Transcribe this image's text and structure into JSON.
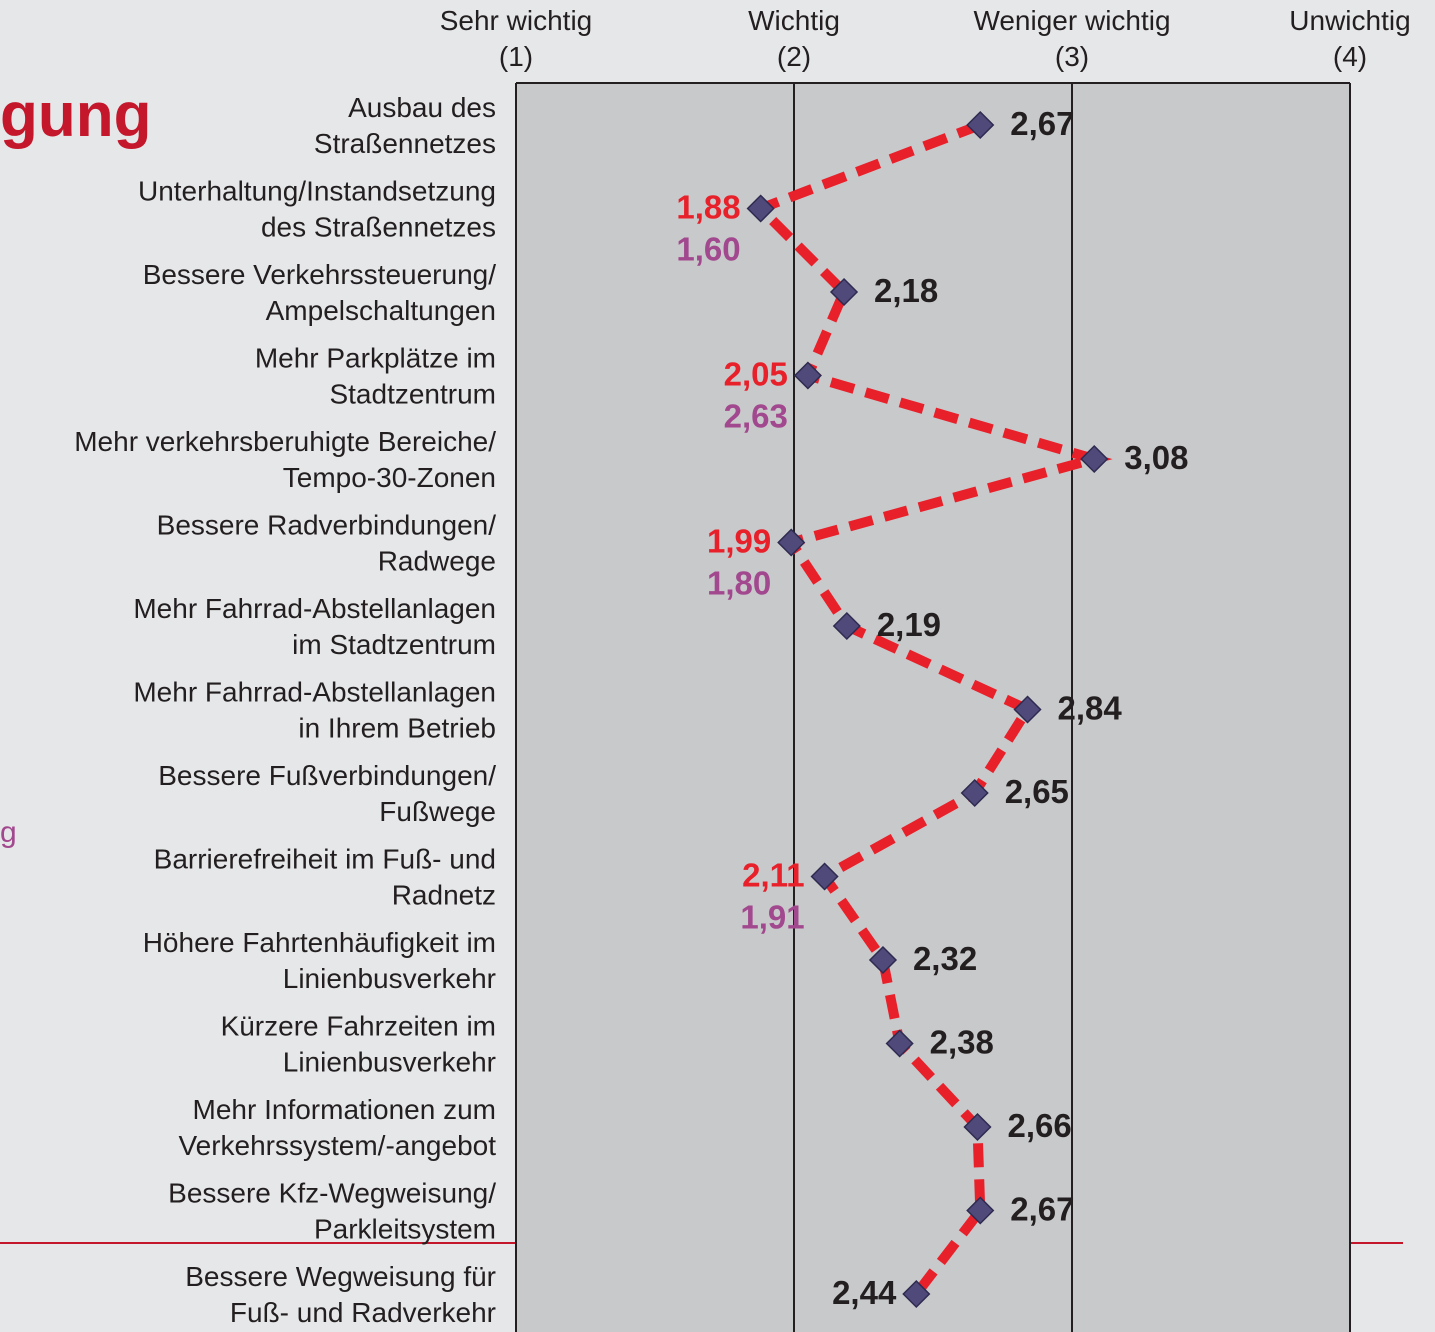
{
  "chart_data": {
    "type": "line",
    "title": "gung",
    "annotation": "g",
    "categories": [
      "Ausbau des\nStraßennetzes",
      "Unterhaltung/Instandsetzung\ndes Straßennetzes",
      "Bessere Verkehrssteuerung/\nAmpelschaltungen",
      "Mehr Parkplätze im\nStadtzentrum",
      "Mehr verkehrsberuhigte Bereiche/\nTempo-30-Zonen",
      "Bessere Radverbindungen/\nRadwege",
      "Mehr Fahrrad-Abstellanlagen\nim Stadtzentrum",
      "Mehr Fahrrad-Abstellanlagen\nin Ihrem Betrieb",
      "Bessere Fußverbindungen/\nFußwege",
      "Barrierefreiheit im Fuß- und\nRadnetz",
      "Höhere Fahrtenhäufigkeit im\nLinienbusverkehr",
      "Kürzere Fahrzeiten im\nLinienbusverkehr",
      "Mehr Informationen zum\nVerkehrssystem/-angebot",
      "Bessere Kfz-Wegweisung/\nParkleitsystem",
      "Bessere Wegweisung für\nFuß- und Radverkehr"
    ],
    "values": [
      2.67,
      1.88,
      2.18,
      2.05,
      3.08,
      1.99,
      2.19,
      2.84,
      2.65,
      2.11,
      2.32,
      2.38,
      2.66,
      2.67,
      2.44
    ],
    "value_labels": [
      "2,67",
      "1,88",
      "2,18",
      "2,05",
      "3,08",
      "1,99",
      "2,19",
      "2,84",
      "2,65",
      "2,11",
      "2,32",
      "2,38",
      "2,66",
      "2,67",
      "2,44"
    ],
    "comparison_values": [
      null,
      1.6,
      null,
      2.63,
      null,
      1.8,
      null,
      null,
      null,
      1.91,
      null,
      null,
      null,
      null,
      null
    ],
    "comparison_value_labels": [
      null,
      "1,60",
      null,
      "2,63",
      null,
      "1,80",
      null,
      null,
      null,
      "1,91",
      null,
      null,
      null,
      null,
      null
    ],
    "xlim": [
      1,
      4
    ],
    "xticks": [
      {
        "value": 1,
        "label": "Sehr wichtig\n(1)"
      },
      {
        "value": 2,
        "label": "Wichtig\n(2)"
      },
      {
        "value": 3,
        "label": "Weniger wichtig\n(3)"
      },
      {
        "value": 4,
        "label": "Unwichtig\n(4)"
      }
    ],
    "line_color": "#e8202a",
    "marker_color": "#4f4a7a",
    "comparison_color": "#a2488e",
    "grid": true
  }
}
